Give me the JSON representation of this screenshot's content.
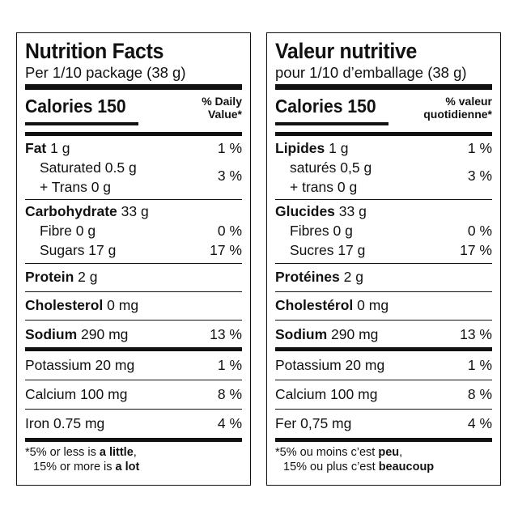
{
  "labels": [
    {
      "title": "Nutrition Facts",
      "serving": "Per 1/10 package (38 g)",
      "calories": "Calories 150",
      "dv_head_1": "% Daily",
      "dv_head_2": "Value*",
      "fat_label": "Fat",
      "fat_amount": "1 g",
      "fat_pct": "1 %",
      "saturated": "Saturated 0.5 g",
      "trans": "+ Trans 0 g",
      "sat_trans_pct": "3 %",
      "carb_label": "Carbohydrate",
      "carb_amount": "33 g",
      "fibre": "Fibre 0 g",
      "fibre_pct": "0 %",
      "sugars": "Sugars 17 g",
      "sugars_pct": "17 %",
      "protein_label": "Protein",
      "protein_amount": "2 g",
      "cholesterol_label": "Cholesterol",
      "cholesterol_amount": "0 mg",
      "sodium_label": "Sodium",
      "sodium_amount": "290 mg",
      "sodium_pct": "13 %",
      "potassium": "Potassium 20 mg",
      "potassium_pct": "1 %",
      "calcium": "Calcium 100 mg",
      "calcium_pct": "8 %",
      "iron": "Iron 0.75 mg",
      "iron_pct": "4 %",
      "foot_1a": "*5% or less is ",
      "foot_1b": "a little",
      "foot_1c": ",",
      "foot_2a": "15% or more is ",
      "foot_2b": "a lot"
    },
    {
      "title": "Valeur nutritive",
      "serving": "pour 1/10 d’emballage (38 g)",
      "calories": "Calories 150",
      "dv_head_1": "% valeur",
      "dv_head_2": "quotidienne*",
      "fat_label": "Lipides",
      "fat_amount": "1 g",
      "fat_pct": "1 %",
      "saturated": "saturés 0,5 g",
      "trans": "+ trans 0 g",
      "sat_trans_pct": "3 %",
      "carb_label": "Glucides",
      "carb_amount": "33 g",
      "fibre": "Fibres 0 g",
      "fibre_pct": "0 %",
      "sugars": "Sucres 17 g",
      "sugars_pct": "17 %",
      "protein_label": "Protéines",
      "protein_amount": "2 g",
      "cholesterol_label": "Cholestérol",
      "cholesterol_amount": "0 mg",
      "sodium_label": "Sodium",
      "sodium_amount": "290 mg",
      "sodium_pct": "13 %",
      "potassium": "Potassium 20 mg",
      "potassium_pct": "1 %",
      "calcium": "Calcium 100 mg",
      "calcium_pct": "8 %",
      "iron": "Fer 0,75 mg",
      "iron_pct": "4 %",
      "foot_1a": "*5% ou moins c’est ",
      "foot_1b": "peu",
      "foot_1c": ",",
      "foot_2a": "15% ou plus c’est ",
      "foot_2b": "beaucoup"
    }
  ]
}
